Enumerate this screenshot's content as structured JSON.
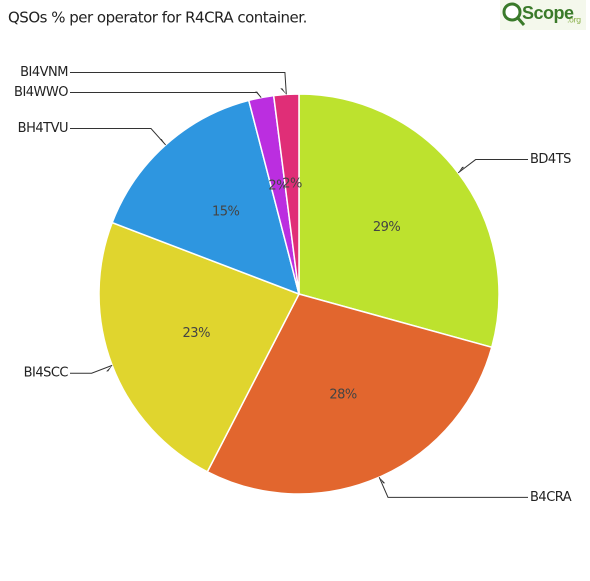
{
  "chart_data": {
    "type": "pie",
    "title": "QSOs % per operator for R4CRA    container.",
    "logo": "Scope",
    "logo_suffix": ".org",
    "categories": [
      "BD4TS",
      "B4CRA",
      "BI4SCC",
      "BH4TVU",
      "BI4WWO",
      "BI4VNM"
    ],
    "values": [
      29,
      28,
      23,
      15,
      2,
      2
    ],
    "value_labels": [
      "29%",
      "28%",
      "23%",
      "15%",
      "2%",
      "2%"
    ],
    "colors": [
      "#bde22e",
      "#e2662e",
      "#e0d52e",
      "#2e96e0",
      "#bb2ee0",
      "#e02e77"
    ]
  }
}
